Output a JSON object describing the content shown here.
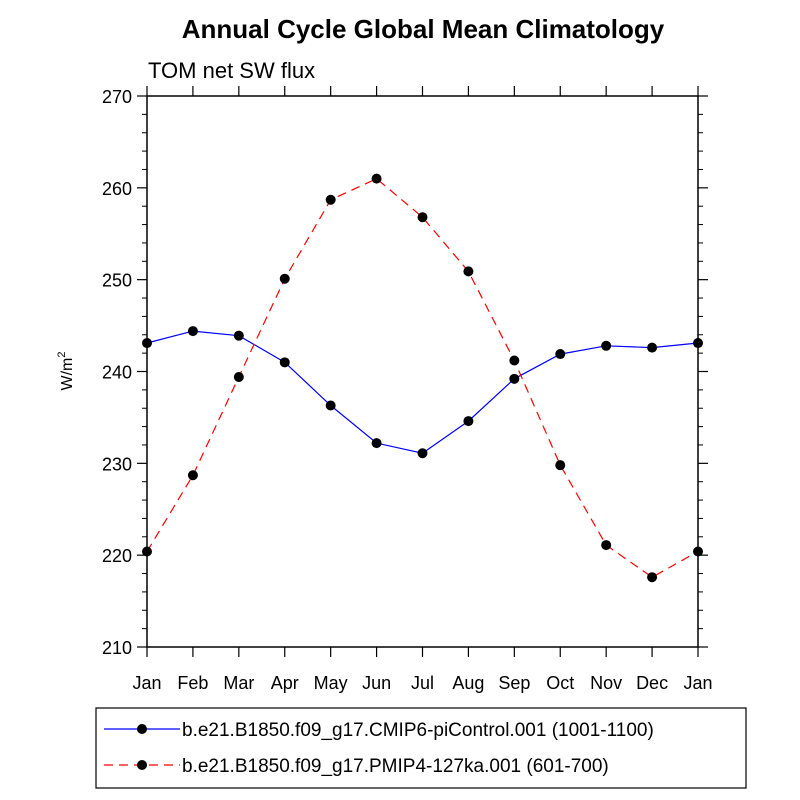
{
  "chart_data": {
    "type": "line",
    "title": "Annual Cycle Global Mean Climatology",
    "subtitle": "TOM net SW flux",
    "ylabel": "W/m",
    "ylabel_sup": "2",
    "ylim": [
      210,
      270
    ],
    "yticks": [
      210,
      220,
      230,
      240,
      250,
      260,
      270
    ],
    "categories": [
      "Jan",
      "Feb",
      "Mar",
      "Apr",
      "May",
      "Jun",
      "Jul",
      "Aug",
      "Sep",
      "Oct",
      "Nov",
      "Dec",
      "Jan"
    ],
    "grid": false,
    "legend_position": "bottom",
    "series": [
      {
        "name": "b.e21.B1850.f09_g17.CMIP6-piControl.001 (1001-1100)",
        "color": "#0000ff",
        "line_style": "solid",
        "values": [
          243.1,
          244.4,
          243.9,
          241.0,
          236.3,
          232.2,
          231.1,
          234.6,
          239.2,
          241.9,
          242.8,
          242.6,
          243.1
        ]
      },
      {
        "name": "b.e21.B1850.f09_g17.PMIP4-127ka.001 (601-700)",
        "color": "#ff0000",
        "line_style": "dashed",
        "values": [
          220.4,
          228.7,
          239.4,
          250.1,
          258.7,
          261.0,
          256.8,
          250.9,
          241.2,
          229.8,
          221.1,
          217.6,
          220.4
        ]
      }
    ]
  }
}
